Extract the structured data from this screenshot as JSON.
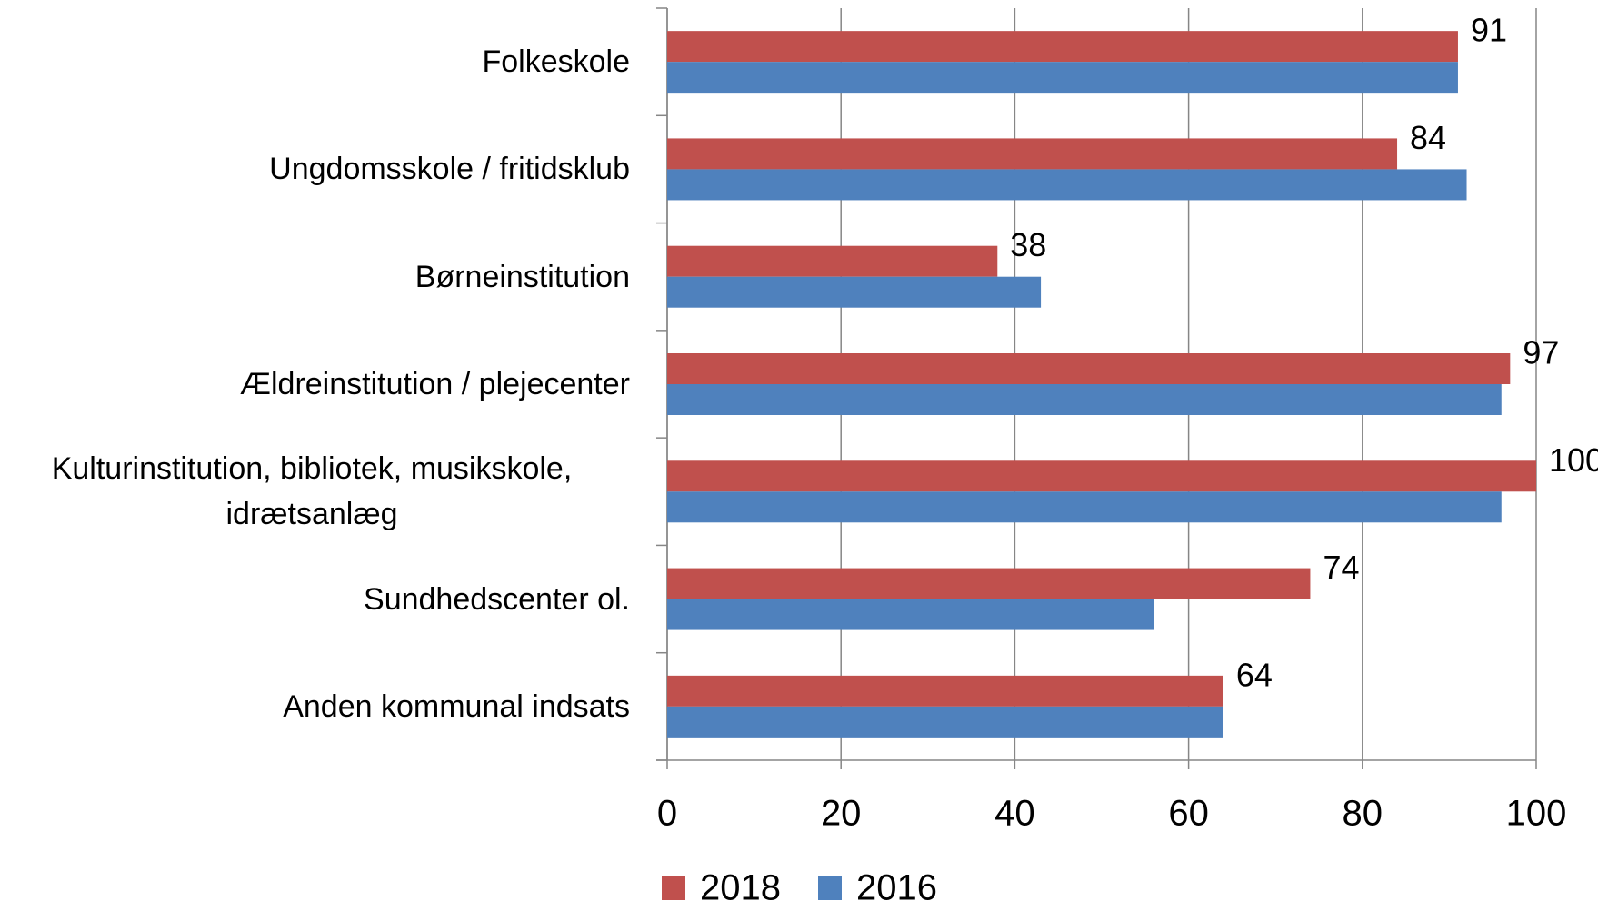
{
  "chart_data": {
    "type": "bar",
    "orientation": "horizontal",
    "categories": [
      "Folkeskole",
      "Ungdomsskole / fritidsklub",
      "Børneinstitution",
      "Ældreinstitution / plejecenter",
      "Kulturinstitution, bibliotek, musikskole, idrætsanlæg",
      "Sundhedscenter ol.",
      "Anden kommunal indsats"
    ],
    "series": [
      {
        "name": "2018",
        "color": "#c0504d",
        "values": [
          91,
          84,
          38,
          97,
          100,
          74,
          64
        ],
        "show_value_labels": true
      },
      {
        "name": "2016",
        "color": "#4f81bd",
        "values": [
          91,
          92,
          43,
          96,
          96,
          56,
          64
        ],
        "show_value_labels": false
      }
    ],
    "xlim": [
      0,
      100
    ],
    "xticks": [
      0,
      20,
      40,
      60,
      80,
      100
    ],
    "grid": true,
    "legend": "bottom"
  }
}
